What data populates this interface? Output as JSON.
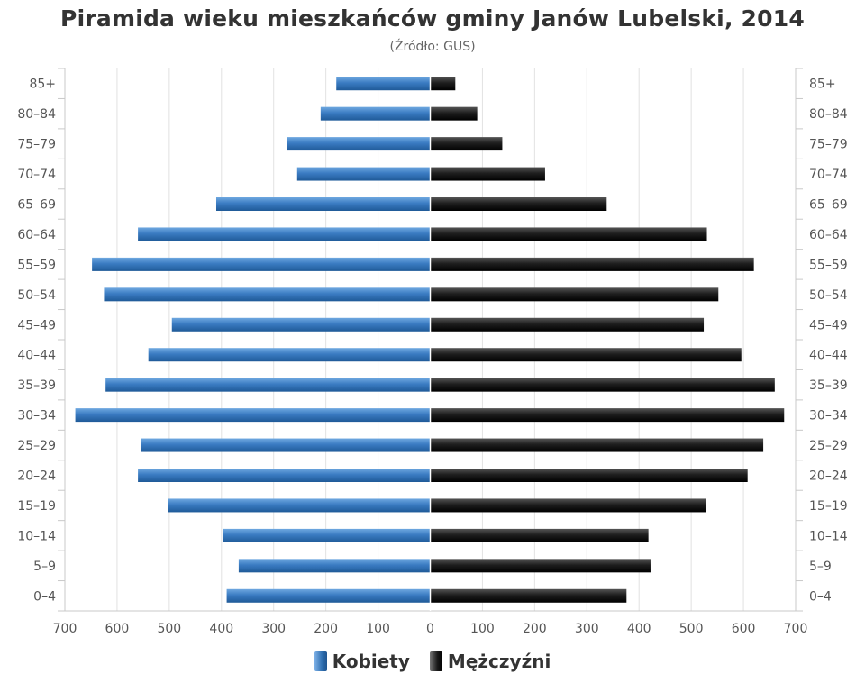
{
  "title": "Piramida wieku mieszkańców gminy Janów Lubelski, 2014",
  "subtitle": "(Źródło: GUS)",
  "chart_data": {
    "type": "bar",
    "orientation": "horizontal-population-pyramid",
    "title": "Piramida wieku mieszkańców gminy Janów Lubelski, 2014",
    "subtitle": "(Źródło: GUS)",
    "categories": [
      "85+",
      "80–84",
      "75–79",
      "70–74",
      "65–69",
      "60–64",
      "55–59",
      "50–54",
      "45–49",
      "40–44",
      "35–39",
      "30–34",
      "25–29",
      "20–24",
      "15–19",
      "10–14",
      "5–9",
      "0–4"
    ],
    "series": [
      {
        "name": "Kobiety",
        "side": "left",
        "color": "#3a78bf",
        "values": [
          180,
          210,
          275,
          255,
          410,
          560,
          648,
          625,
          495,
          540,
          622,
          680,
          555,
          560,
          502,
          397,
          367,
          390
        ]
      },
      {
        "name": "Mężczyźni",
        "side": "right",
        "color": "#1a1a1a",
        "values": [
          48,
          90,
          138,
          220,
          338,
          530,
          620,
          552,
          524,
          596,
          660,
          678,
          638,
          608,
          528,
          418,
          422,
          376
        ]
      }
    ],
    "x_ticks": [
      "700",
      "600",
      "500",
      "400",
      "300",
      "200",
      "100",
      "0",
      "100",
      "200",
      "300",
      "400",
      "500",
      "600",
      "700"
    ],
    "xlim": [
      -700,
      700
    ],
    "grid": true,
    "legend": "bottom-center"
  }
}
